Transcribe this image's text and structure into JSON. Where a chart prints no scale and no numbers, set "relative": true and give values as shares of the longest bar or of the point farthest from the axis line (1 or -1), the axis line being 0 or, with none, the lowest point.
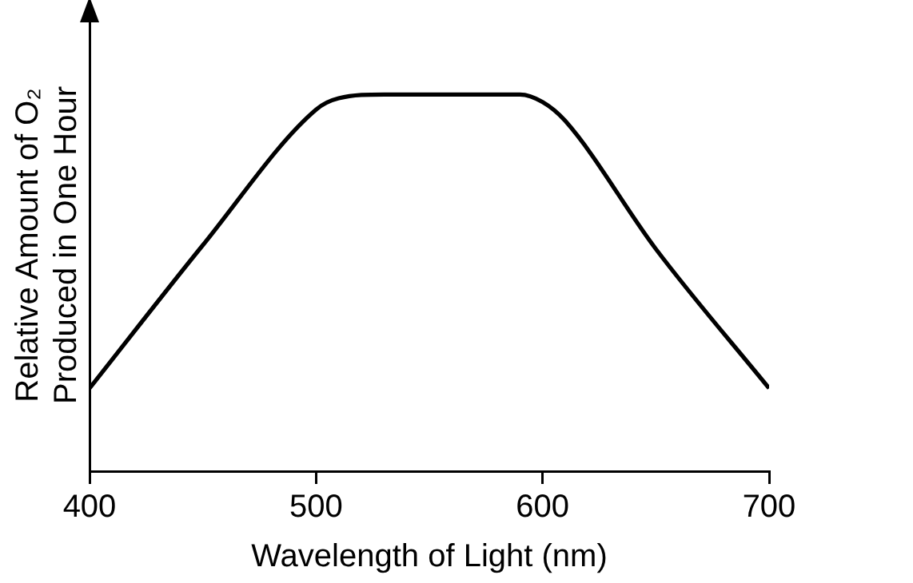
{
  "chart_data": {
    "type": "line",
    "xlabel": "Wavelength of Light (nm)",
    "ylabel": "Relative Amount of O₂\nProduced in One Hour",
    "relative": true,
    "xlim": [
      400,
      700
    ],
    "xticks": [
      400,
      500,
      600,
      700
    ],
    "grid": false,
    "legend": false,
    "marker": "none",
    "line_style": "solid",
    "series": [
      {
        "color": "#000000",
        "x": [
          400,
          450,
          500,
          510,
          530,
          560,
          590,
          600,
          610,
          650,
          700
        ],
        "values": [
          0.22,
          0.6,
          0.96,
          0.99,
          1,
          1,
          1,
          0.98,
          0.93,
          0.59,
          0.22
        ]
      }
    ]
  }
}
